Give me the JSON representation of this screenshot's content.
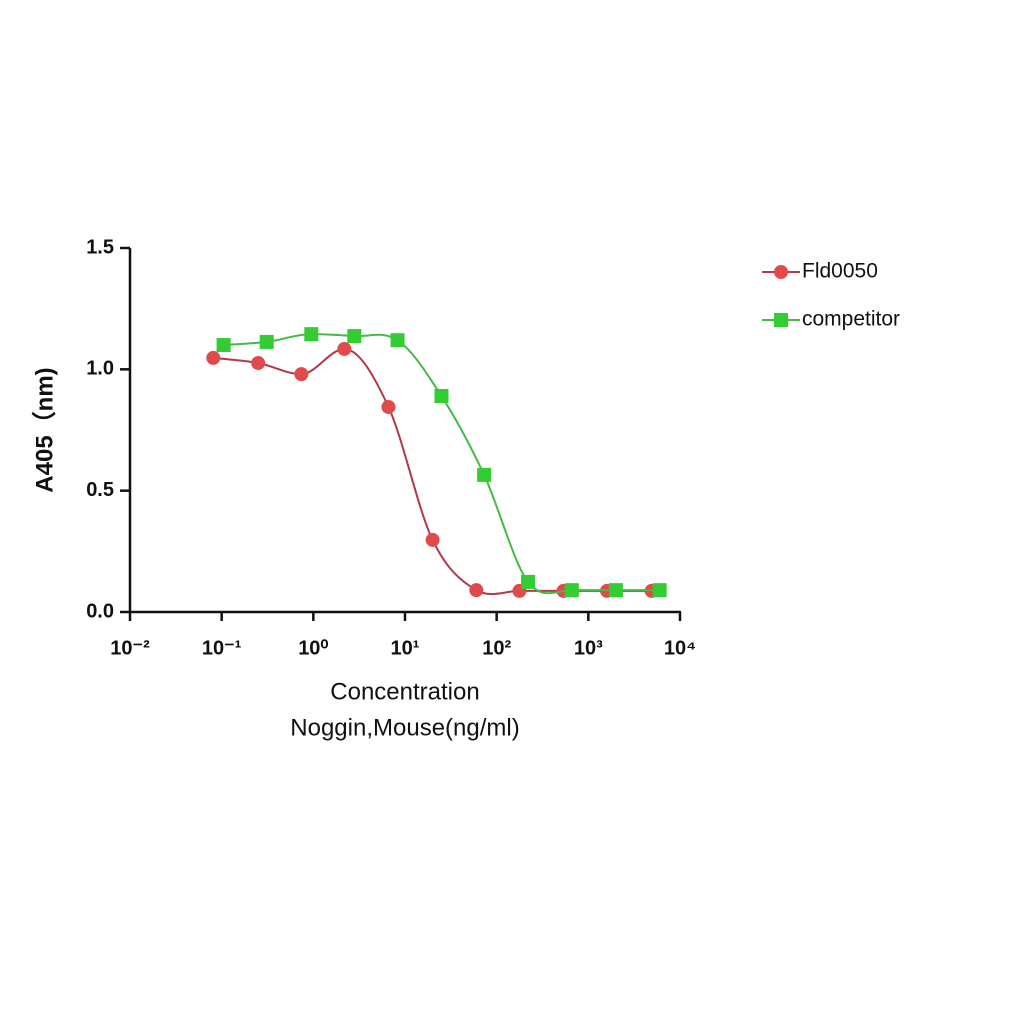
{
  "chart_data": {
    "type": "scatter",
    "xlabel": [
      "Concentration",
      "Noggin,Mouse(ng/ml)"
    ],
    "ylabel": "A405（nm)",
    "log_x": true,
    "grid": false,
    "legend": "right",
    "xlim": [
      0.01,
      10000
    ],
    "xticks": [
      {
        "value": 0.01,
        "label": "10⁻²"
      },
      {
        "value": 0.1,
        "label": "10⁻¹"
      },
      {
        "value": 1,
        "label": "10⁰"
      },
      {
        "value": 10,
        "label": "10¹"
      },
      {
        "value": 100,
        "label": "10²"
      },
      {
        "value": 1000,
        "label": "10³"
      },
      {
        "value": 10000,
        "label": "10⁴"
      }
    ],
    "ylim": [
      0,
      1.5
    ],
    "yticks": [
      {
        "value": 0,
        "label": "0.0"
      },
      0.5,
      {
        "value": 1,
        "label": "1.0"
      },
      1.5
    ],
    "series": [
      {
        "name": "Fld0050",
        "color": "#e04a4a",
        "line_color": "#b03a4a",
        "marker": "circle",
        "x": [
          0.081,
          0.25,
          0.74,
          2.18,
          6.6,
          20,
          60,
          177,
          536,
          1600,
          4900
        ],
        "values": [
          1.047,
          1.026,
          0.98,
          1.084,
          0.845,
          0.297,
          0.09,
          0.087,
          0.087,
          0.087,
          0.087
        ]
      },
      {
        "name": "competitor",
        "color": "#33cc33",
        "line_color": "#44bb44",
        "marker": "square",
        "x": [
          0.105,
          0.31,
          0.95,
          2.8,
          8.3,
          25,
          73,
          220,
          660,
          2000,
          6000
        ],
        "values": [
          1.1,
          1.113,
          1.145,
          1.137,
          1.12,
          0.89,
          0.565,
          0.124,
          0.09,
          0.09,
          0.09
        ]
      }
    ]
  }
}
